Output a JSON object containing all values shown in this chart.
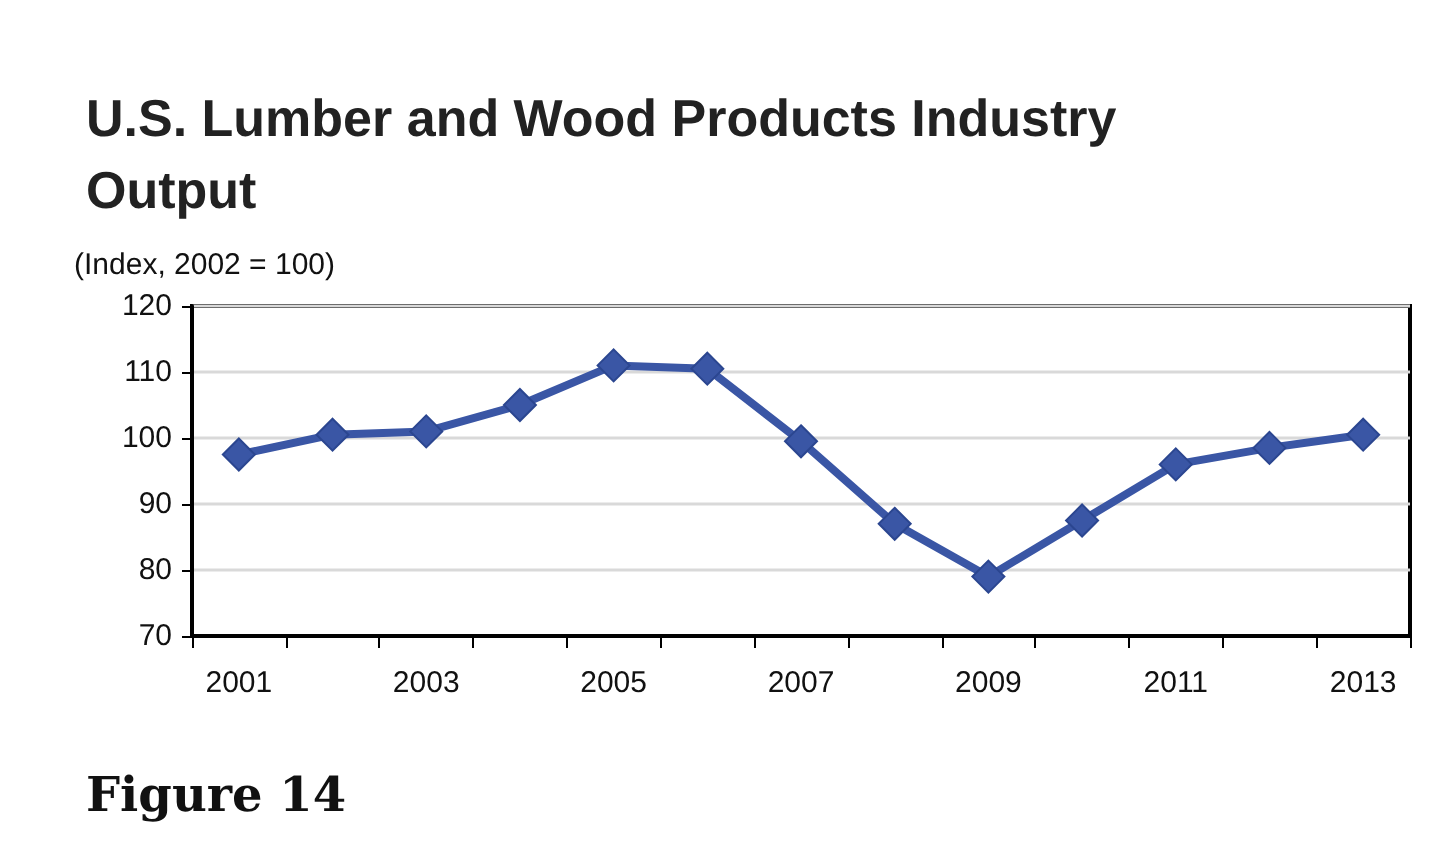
{
  "chart_data": {
    "type": "line",
    "title": "U.S. Lumber and Wood Products Industry Output",
    "subtitle": "(Index, 2002 = 100)",
    "annotations": [
      "Figure 14"
    ],
    "categories": [
      "2001",
      null,
      "2003",
      null,
      "2005",
      null,
      "2007",
      null,
      "2009",
      null,
      "2011",
      null,
      "2013"
    ],
    "series": [
      {
        "color": "#3a56a5",
        "values": [
          97.5,
          100.5,
          101,
          105,
          111,
          110.5,
          99.5,
          87,
          79,
          87.5,
          96,
          98.5,
          100.5
        ]
      }
    ],
    "ylim": [
      70,
      120
    ],
    "yticks": [
      70,
      80,
      90,
      100,
      110,
      120
    ],
    "grid": "y",
    "marker": "diamond",
    "line_style": "solid"
  }
}
